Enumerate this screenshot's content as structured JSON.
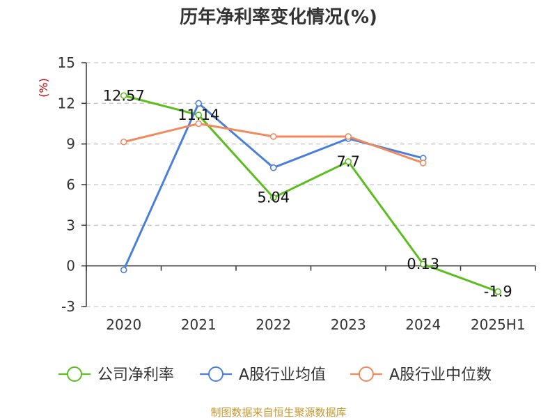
{
  "chart_data": {
    "type": "line",
    "title": "历年净利率变化情况(%)",
    "unit_label": "(%)",
    "categories": [
      "2020",
      "2021",
      "2022",
      "2023",
      "2024",
      "2025H1"
    ],
    "ylim": [
      -3,
      15
    ],
    "yticks": [
      15,
      12,
      9,
      6,
      3,
      0,
      -3
    ],
    "grid": true,
    "legend_position": "bottom",
    "series": [
      {
        "name": "公司净利率",
        "color": "#5cbd1f",
        "values": [
          12.57,
          11.14,
          5.04,
          7.7,
          0.13,
          -1.9
        ],
        "labels": [
          "12.57",
          "11.14",
          "5.04",
          "7.7",
          "0.13",
          "-1.9"
        ]
      },
      {
        "name": "A股行业均值",
        "color": "#4a7fd9",
        "values": [
          -0.3,
          12.0,
          7.25,
          9.4,
          7.95,
          null
        ]
      },
      {
        "name": "A股行业中位数",
        "color": "#f08a5d",
        "values": [
          9.15,
          10.5,
          9.55,
          9.55,
          7.6,
          null
        ]
      }
    ]
  },
  "footer": {
    "source": "制图数据来自恒生聚源数据库"
  }
}
